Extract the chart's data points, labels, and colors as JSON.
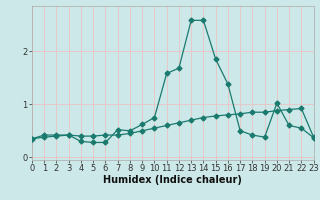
{
  "xlabel": "Humidex (Indice chaleur)",
  "bg_color": "#cce8e8",
  "grid_color": "#e8c8c8",
  "line_color": "#1a7a6e",
  "series1_x": [
    0,
    1,
    2,
    3,
    4,
    5,
    6,
    7,
    8,
    9,
    10,
    11,
    12,
    13,
    14,
    15,
    16,
    17,
    18,
    19,
    20,
    21,
    22,
    23
  ],
  "series1_y": [
    0.35,
    0.42,
    0.42,
    0.42,
    0.3,
    0.28,
    0.28,
    0.52,
    0.5,
    0.62,
    0.75,
    1.58,
    1.68,
    2.58,
    2.58,
    1.85,
    1.38,
    0.5,
    0.42,
    0.38,
    1.02,
    0.6,
    0.55,
    0.37
  ],
  "series2_x": [
    0,
    1,
    2,
    3,
    4,
    5,
    6,
    7,
    8,
    9,
    10,
    11,
    12,
    13,
    14,
    15,
    16,
    17,
    18,
    19,
    20,
    21,
    22,
    23
  ],
  "series2_y": [
    0.35,
    0.38,
    0.4,
    0.42,
    0.4,
    0.4,
    0.42,
    0.42,
    0.45,
    0.5,
    0.55,
    0.6,
    0.65,
    0.7,
    0.75,
    0.78,
    0.8,
    0.82,
    0.85,
    0.85,
    0.88,
    0.9,
    0.92,
    0.38
  ],
  "xlim": [
    0,
    23
  ],
  "ylim": [
    -0.05,
    2.85
  ],
  "yticks": [
    0,
    1,
    2
  ],
  "xticks": [
    0,
    1,
    2,
    3,
    4,
    5,
    6,
    7,
    8,
    9,
    10,
    11,
    12,
    13,
    14,
    15,
    16,
    17,
    18,
    19,
    20,
    21,
    22,
    23
  ],
  "marker": "D",
  "markersize": 2.5,
  "linewidth": 0.9,
  "tick_fontsize": 6,
  "xlabel_fontsize": 7
}
